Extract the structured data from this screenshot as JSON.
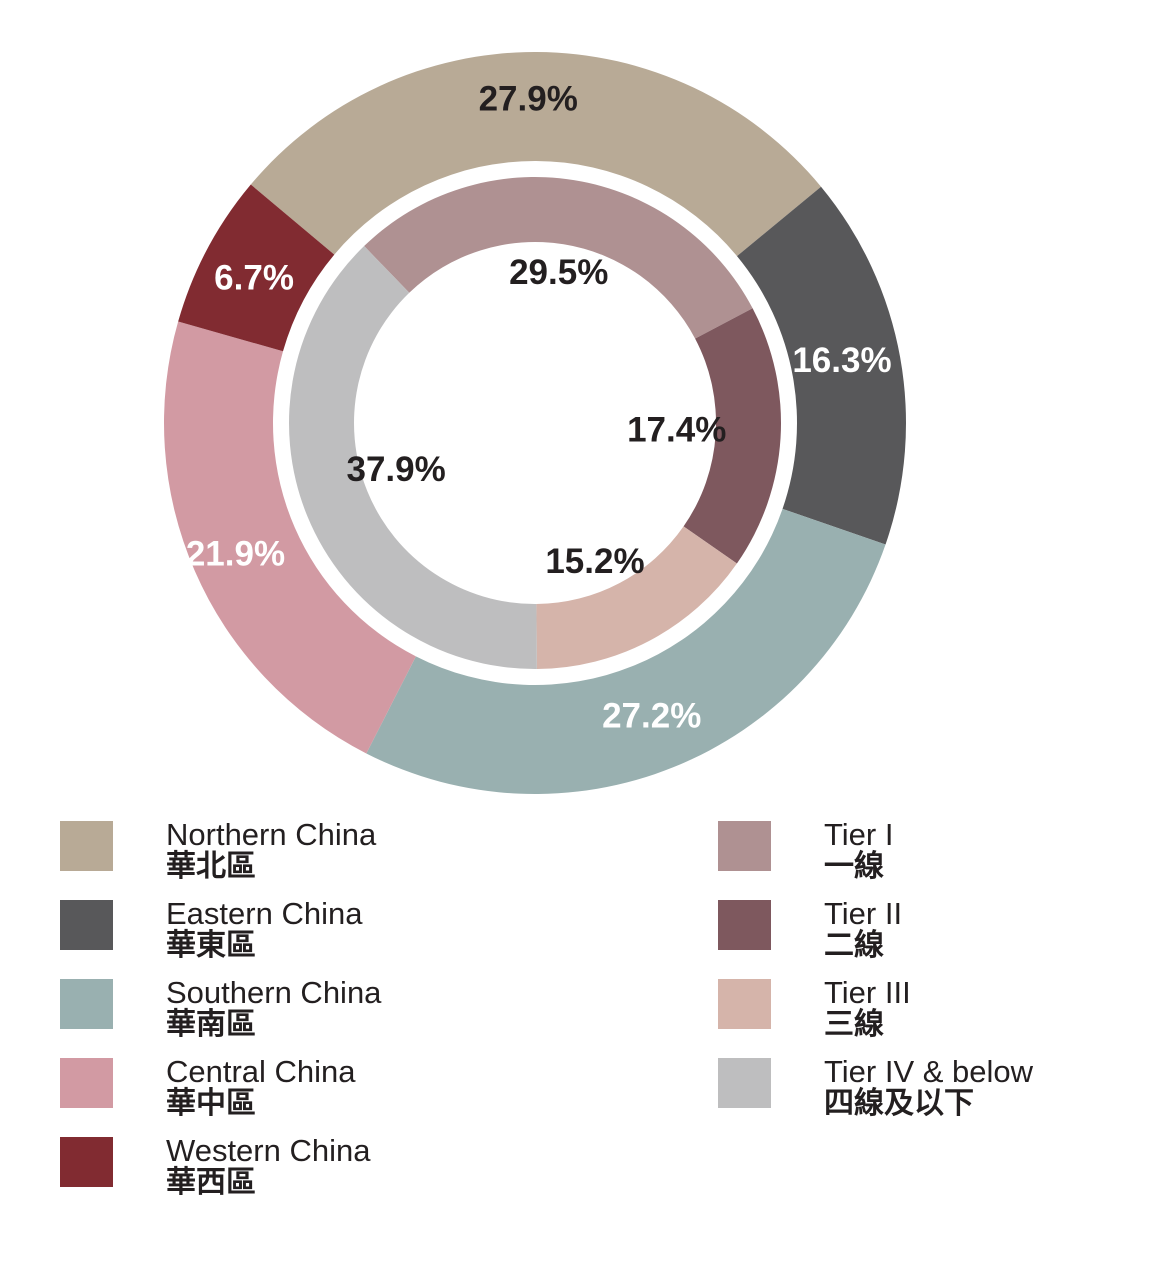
{
  "chart_data": [
    {
      "type": "pie",
      "ring": "outer",
      "slices": [
        {
          "label_en": "Northern China",
          "label_zh": "華北區",
          "value": 27.9,
          "display": "27.9%",
          "color": "#b8aa96",
          "label_color": "#231f20"
        },
        {
          "label_en": "Eastern China",
          "label_zh": "華東區",
          "value": 16.3,
          "display": "16.3%",
          "color": "#58585a",
          "label_color": "#ffffff"
        },
        {
          "label_en": "Southern China",
          "label_zh": "華南區",
          "value": 27.2,
          "display": "27.2%",
          "color": "#99b0b0",
          "label_color": "#ffffff"
        },
        {
          "label_en": "Central China",
          "label_zh": "華中區",
          "value": 21.9,
          "display": "21.9%",
          "color": "#d29aa3",
          "label_color": "#ffffff"
        },
        {
          "label_en": "Western China",
          "label_zh": "華西區",
          "value": 6.7,
          "display": "6.7%",
          "color": "#812b31",
          "label_color": "#ffffff"
        }
      ]
    },
    {
      "type": "pie",
      "ring": "inner",
      "slices": [
        {
          "label_en": "Tier I",
          "label_zh": "一線",
          "value": 29.5,
          "display": "29.5%",
          "color": "#af9192",
          "label_color": "#231f20"
        },
        {
          "label_en": "Tier II",
          "label_zh": "二線",
          "value": 17.4,
          "display": "17.4%",
          "color": "#7e585e",
          "label_color": "#231f20"
        },
        {
          "label_en": "Tier III",
          "label_zh": "三線",
          "value": 15.2,
          "display": "15.2%",
          "color": "#d5b4aa",
          "label_color": "#231f20"
        },
        {
          "label_en": "Tier IV & below",
          "label_zh": "四線及以下",
          "value": 37.9,
          "display": "37.9%",
          "color": "#bebebf",
          "label_color": "#231f20"
        }
      ]
    }
  ]
}
